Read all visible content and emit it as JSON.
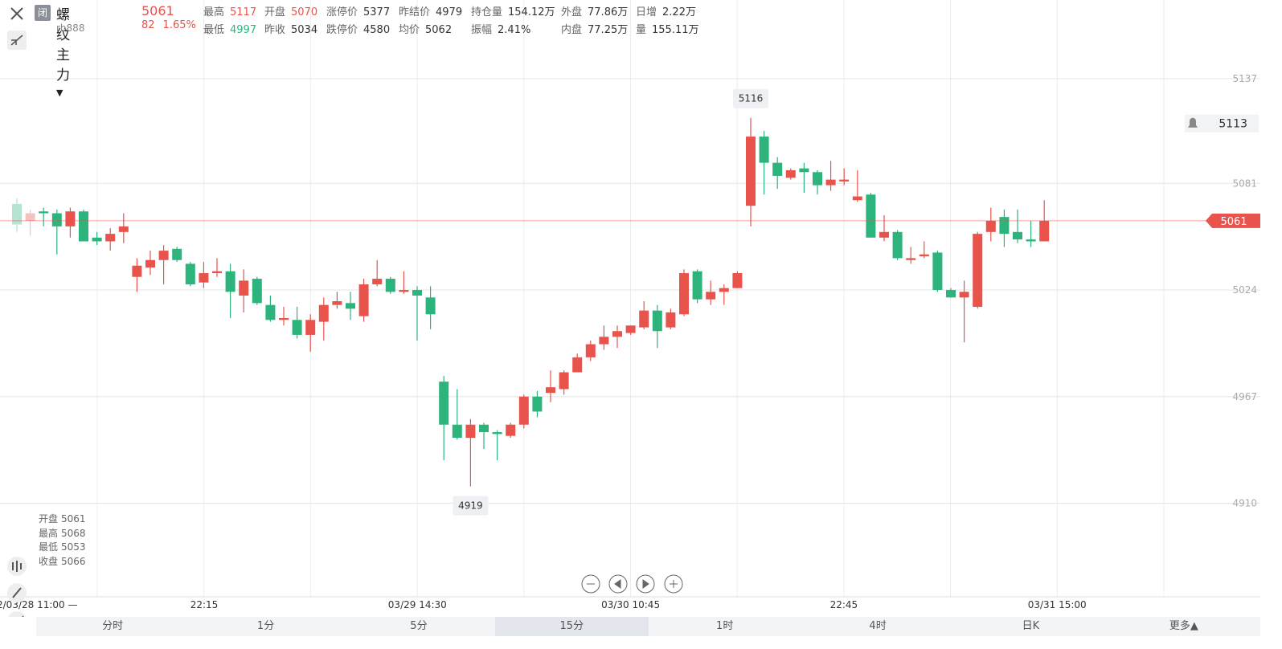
{
  "header": {
    "close_tag": "闭",
    "symbol": "螺纹主力",
    "code": "rb888",
    "price": "5061",
    "change": "82",
    "change_pct": "1.65%"
  },
  "stats": [
    [
      {
        "label": "最高",
        "value": "5117"
      },
      {
        "label": "开盘",
        "value": "5070"
      },
      {
        "label": "涨停价",
        "value": "5377"
      },
      {
        "label": "昨结价",
        "value": "4979"
      },
      {
        "label": "持仓量",
        "value": "154.12万"
      },
      {
        "label": "外盘",
        "value": "77.86万"
      },
      {
        "label": "日增",
        "value": "2.22万"
      }
    ],
    [
      {
        "label": "最低",
        "value": "4997"
      },
      {
        "label": "昨收",
        "value": "5034"
      },
      {
        "label": "跌停价",
        "value": "4580"
      },
      {
        "label": "均价",
        "value": "5062"
      },
      {
        "label": "振幅",
        "value": "2.41%"
      },
      {
        "label": "内盘",
        "value": "77.25万"
      },
      {
        "label": "量",
        "value": "155.11万"
      }
    ]
  ],
  "ohlc_overlay": [
    {
      "label": "开盘",
      "value": "5061"
    },
    {
      "label": "最高",
      "value": "5068"
    },
    {
      "label": "最低",
      "value": "5053"
    },
    {
      "label": "收盘",
      "value": "5066"
    }
  ],
  "chart_data": {
    "type": "candlestick",
    "up_color": "#e8534c",
    "down_color": "#2db47d",
    "grid": true,
    "ylim": [
      4860,
      5179
    ],
    "yticks": [
      4910,
      4967,
      5024,
      5081,
      5137
    ],
    "x_labels": [
      "2/03/28 11:00 —",
      "22:15",
      "03/29 14:30",
      "03/30 10:45",
      "22:45",
      "03/31 15:00"
    ],
    "alert_price": 5113,
    "open": [
      5070,
      5061,
      5066,
      5065,
      5058,
      5066,
      5052,
      5050,
      5055,
      5031,
      5036,
      5040,
      5046,
      5038,
      5028,
      5033,
      5034,
      5021,
      5030,
      5016,
      5008,
      5008,
      5000,
      5007,
      5016,
      5017,
      5010,
      5027,
      5030,
      5023,
      5024,
      5020,
      4975,
      4952,
      4945,
      4952,
      4948,
      4946,
      4952,
      4967,
      4969,
      4971,
      4980,
      4988,
      4995,
      4999,
      5001,
      5004,
      5013,
      5004,
      5011,
      5034,
      5019,
      5023,
      5025,
      5069,
      5106,
      5092,
      5084,
      5089,
      5087,
      5080,
      5082,
      5072,
      5075,
      5052,
      5055,
      5040,
      5042,
      5044,
      5024,
      5020,
      5015,
      5055,
      5063,
      5055,
      5051,
      5050
    ],
    "high": [
      5073,
      5067,
      5068,
      5067,
      5068,
      5067,
      5055,
      5057,
      5065,
      5041,
      5045,
      5048,
      5047,
      5039,
      5039,
      5041,
      5038,
      5035,
      5031,
      5021,
      5015,
      5015,
      5011,
      5020,
      5023,
      5023,
      5030,
      5040,
      5031,
      5034,
      5026,
      5026,
      4978,
      4971,
      4955,
      4953,
      4949,
      4953,
      4968,
      4970,
      4981,
      4981,
      4990,
      4997,
      5005,
      5005,
      5005,
      5018,
      5016,
      5014,
      5035,
      5035,
      5029,
      5027,
      5034,
      5116,
      5109,
      5095,
      5089,
      5092,
      5088,
      5093,
      5089,
      5088,
      5076,
      5064,
      5056,
      5047,
      5050,
      5045,
      5025,
      5029,
      5055,
      5068,
      5067,
      5067,
      5061,
      5072
    ],
    "low": [
      5055,
      5053,
      5058,
      5043,
      5052,
      5050,
      5048,
      5045,
      5049,
      5023,
      5032,
      5027,
      5039,
      5026,
      5025,
      5031,
      5009,
      5012,
      5016,
      5007,
      5005,
      4998,
      4991,
      4997,
      5014,
      5008,
      5007,
      5026,
      5022,
      5022,
      4997,
      5003,
      4933,
      4944,
      4919,
      4939,
      4933,
      4945,
      4950,
      4956,
      4964,
      4968,
      4980,
      4986,
      4992,
      4993,
      5000,
      5003,
      4993,
      5003,
      5010,
      5017,
      5016,
      5016,
      5025,
      5058,
      5075,
      5078,
      5083,
      5076,
      5075,
      5077,
      5080,
      5071,
      5052,
      5050,
      5040,
      5038,
      5041,
      5023,
      5020,
      4996,
      5014,
      5050,
      5047,
      5049,
      5047,
      5050
    ],
    "close": [
      5059,
      5065,
      5065,
      5058,
      5066,
      5050,
      5050,
      5054,
      5058,
      5037,
      5040,
      5045,
      5040,
      5027,
      5033,
      5034,
      5023,
      5029,
      5017,
      5008,
      5009,
      5000,
      5008,
      5016,
      5018,
      5014,
      5027,
      5030,
      5023,
      5024,
      5021,
      5011,
      4952,
      4945,
      4952,
      4948,
      4947,
      4952,
      4967,
      4959,
      4972,
      4980,
      4988,
      4995,
      4999,
      5002,
      5005,
      5013,
      5002,
      5012,
      5033,
      5019,
      5023,
      5025,
      5033,
      5106,
      5092,
      5085,
      5088,
      5087,
      5080,
      5083,
      5083,
      5074,
      5052,
      5055,
      5041,
      5041,
      5043,
      5024,
      5020,
      5023,
      5054,
      5061,
      5054,
      5051,
      5050,
      5061
    ]
  },
  "tabs": [
    "分时",
    "1分",
    "5分",
    "15分",
    "1时",
    "4时",
    "日K",
    "更多▲"
  ],
  "active_tab": 3
}
